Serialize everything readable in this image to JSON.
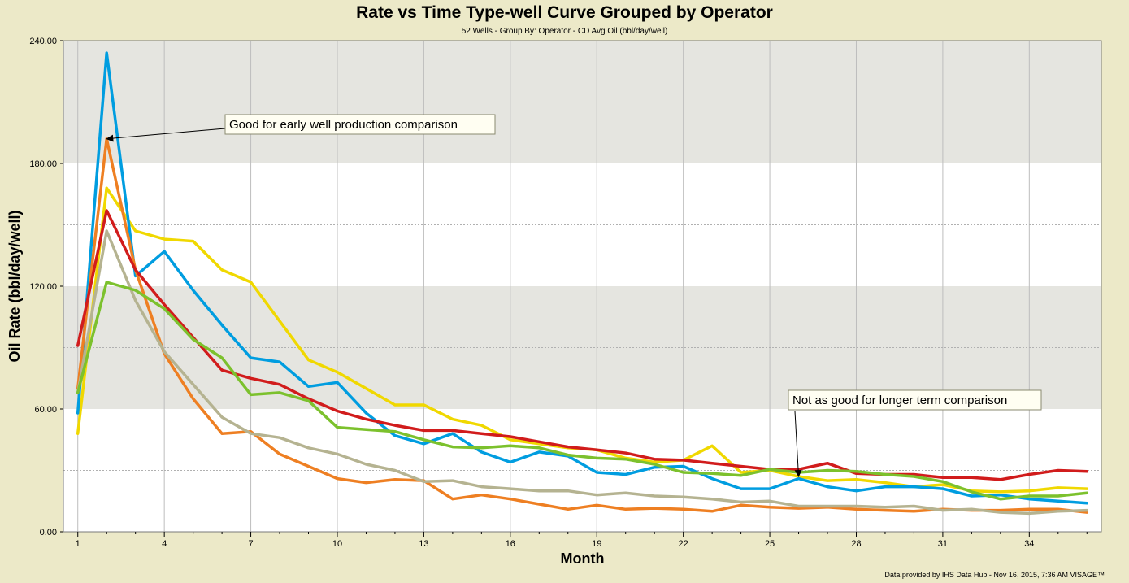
{
  "chart_data": {
    "type": "line",
    "title": "Rate vs Time Type-well Curve Grouped by Operator",
    "subtitle": "52 Wells - Group By: Operator - CD Avg Oil (bbl/day/well)",
    "xlabel": "Month",
    "ylabel": "Oil Rate (bbl/day/well)",
    "xlim": [
      0.5,
      36.5
    ],
    "ylim": [
      0,
      240
    ],
    "x_ticks": [
      1,
      4,
      7,
      10,
      13,
      16,
      19,
      22,
      25,
      28,
      31,
      34
    ],
    "y_ticks": [
      "0.00",
      "60.00",
      "120.00",
      "180.00",
      "240.00"
    ],
    "grid": true,
    "legend": "none",
    "x": [
      1,
      2,
      3,
      4,
      5,
      6,
      7,
      8,
      9,
      10,
      11,
      12,
      13,
      14,
      15,
      16,
      17,
      18,
      19,
      20,
      21,
      22,
      23,
      24,
      25,
      26,
      27,
      28,
      29,
      30,
      31,
      32,
      33,
      34,
      35,
      36
    ],
    "series": [
      {
        "color": "#f0d800",
        "values": [
          48,
          168,
          147,
          143,
          142,
          128,
          122,
          103,
          84,
          78,
          70,
          62,
          62,
          55,
          52,
          45,
          43,
          41,
          40,
          36,
          34,
          35,
          42,
          29,
          30,
          27,
          25,
          25.5,
          24,
          22,
          23,
          20,
          19.5,
          20,
          21.5,
          21
        ]
      },
      {
        "color": "#009de0",
        "values": [
          58,
          234,
          125,
          137,
          118,
          101,
          85,
          83,
          71,
          73,
          58,
          47,
          43,
          48,
          39,
          34,
          39,
          37,
          29,
          28,
          31.5,
          32,
          26,
          21,
          21,
          26,
          22,
          20,
          22,
          22,
          21,
          17.5,
          18,
          16,
          15,
          14
        ]
      },
      {
        "color": "#ee7f22",
        "values": [
          70,
          192,
          128,
          87,
          65,
          48,
          49,
          38,
          32,
          26,
          24,
          25.5,
          25,
          16,
          18,
          16,
          13.5,
          11,
          13,
          11,
          11.5,
          11,
          10,
          13,
          12,
          11.5,
          12,
          11,
          10.5,
          10,
          11,
          10.5,
          10.5,
          11,
          11,
          9.5
        ]
      },
      {
        "color": "#b5b391",
        "values": [
          68,
          147,
          113,
          88,
          72,
          56,
          48,
          46,
          41,
          38,
          33,
          30,
          24.5,
          25,
          22,
          21,
          20,
          20,
          18,
          19,
          17.5,
          17,
          16,
          14.5,
          15,
          12.5,
          12.5,
          12.5,
          12,
          12.5,
          10.5,
          11,
          9.5,
          9,
          10,
          10.5
        ]
      },
      {
        "color": "#d11c1c",
        "values": [
          91,
          157,
          128,
          111,
          95,
          79,
          75,
          72,
          65,
          59,
          55,
          52,
          49.5,
          49.5,
          48,
          46.5,
          44,
          41.5,
          40,
          38.5,
          35.5,
          35,
          33.5,
          32,
          30.5,
          30.5,
          33.5,
          28.5,
          28,
          28,
          26.5,
          26.5,
          25.5,
          28,
          30,
          29.5
        ]
      },
      {
        "color": "#7cc12d",
        "values": [
          68,
          122,
          118,
          109,
          94,
          85,
          67,
          68,
          64,
          51,
          50,
          49,
          45,
          41.5,
          41,
          42,
          41,
          37.5,
          36,
          35.5,
          33,
          29,
          28.5,
          27.5,
          30.5,
          29,
          30,
          29.5,
          28,
          27,
          24.5,
          19.5,
          16,
          17.5,
          17.5,
          19
        ]
      }
    ],
    "annotations": [
      {
        "text": "Good for early well production comparison",
        "target_x": 2,
        "target_y": 192
      },
      {
        "text": "Not as good for longer term comparison",
        "target_x": 26,
        "target_y": 27
      }
    ]
  },
  "footer": {
    "credit": "Data provided by IHS Data Hub - Nov 16, 2015, 7:36 AM VISAGE™"
  }
}
